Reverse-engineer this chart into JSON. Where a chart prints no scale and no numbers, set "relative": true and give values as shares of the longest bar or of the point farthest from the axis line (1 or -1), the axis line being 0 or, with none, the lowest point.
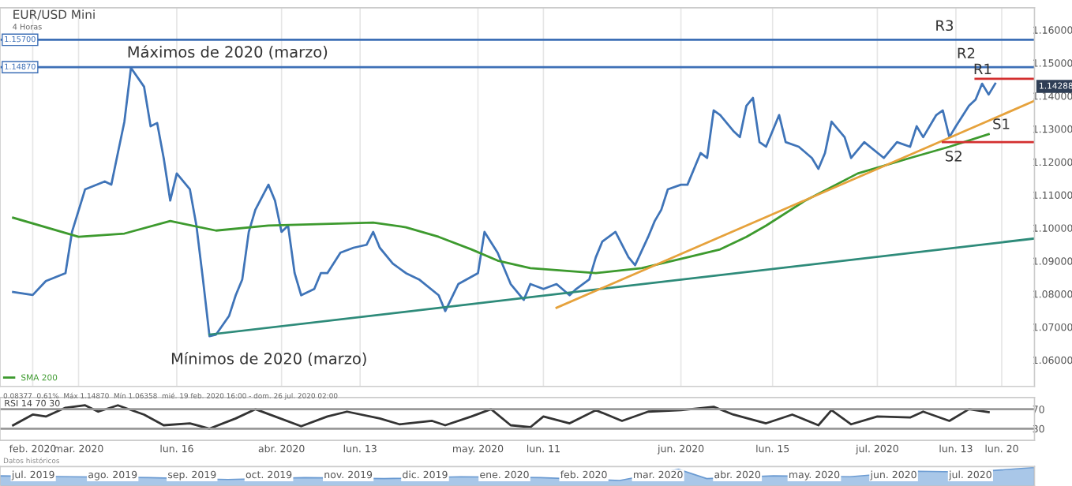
{
  "chart_data": [
    {
      "type": "line",
      "title": "EUR/USD Mini",
      "subtitle": "4 Horas",
      "xlim": [
        "2020-02-18",
        "2020-07-25"
      ],
      "xticks": [
        {
          "value": "2020-02-23",
          "label": null
        },
        {
          "value": "2020-03-01",
          "label": null
        },
        {
          "value": "2020-03-16",
          "label": null
        },
        {
          "value": "2020-04-01",
          "label": null
        },
        {
          "value": "2020-04-13",
          "label": null
        },
        {
          "value": "2020-05-01",
          "label": null
        },
        {
          "value": "2020-05-11",
          "label": null
        },
        {
          "value": "2020-06-01",
          "label": null
        },
        {
          "value": "2020-06-15",
          "label": null
        },
        {
          "value": "2020-07-01",
          "label": null
        },
        {
          "value": "2020-07-13",
          "label": null
        },
        {
          "value": "2020-07-20",
          "label": null
        }
      ],
      "ylim": [
        1.052,
        1.1667
      ],
      "yticks": [
        {
          "value": 1.06,
          "label": "1.06000"
        },
        {
          "value": 1.07,
          "label": "1.07000"
        },
        {
          "value": 1.08,
          "label": "1.08000"
        },
        {
          "value": 1.09,
          "label": "1.09000"
        },
        {
          "value": 1.1,
          "label": "1.10000"
        },
        {
          "value": 1.11,
          "label": "1.11000"
        },
        {
          "value": 1.12,
          "label": "1.12000"
        },
        {
          "value": 1.13,
          "label": "1.13000"
        },
        {
          "value": 1.14,
          "label": "1.14000"
        },
        {
          "value": 1.15,
          "label": "1.15000"
        },
        {
          "value": 1.16,
          "label": "1.16000"
        }
      ],
      "tick_labels": "y",
      "grid": "x",
      "legend": "bottom left",
      "marker": "none",
      "line_style": "solid",
      "series": [
        {
          "color": "#3f74b8",
          "x": [
            "2020-02-20",
            "2020-02-23",
            "2020-02-25",
            "2020-02-28",
            "2020-02-29",
            "2020-03-02",
            "2020-03-05",
            "2020-03-06",
            "2020-03-07",
            "2020-03-08",
            "2020-03-09",
            "2020-03-11",
            "2020-03-12",
            "2020-03-13",
            "2020-03-14",
            "2020-03-15",
            "2020-03-16",
            "2020-03-18",
            "2020-03-19",
            "2020-03-20",
            "2020-03-21",
            "2020-03-22",
            "2020-03-24",
            "2020-03-25",
            "2020-03-26",
            "2020-03-27",
            "2020-03-28",
            "2020-03-30",
            "2020-03-31",
            "2020-04-01",
            "2020-04-02",
            "2020-04-03",
            "2020-04-04",
            "2020-04-06",
            "2020-04-07",
            "2020-04-08",
            "2020-04-10",
            "2020-04-12",
            "2020-04-14",
            "2020-04-15",
            "2020-04-16",
            "2020-04-18",
            "2020-04-20",
            "2020-04-22",
            "2020-04-25",
            "2020-04-26",
            "2020-04-28",
            "2020-05-01",
            "2020-05-02",
            "2020-05-04",
            "2020-05-06",
            "2020-05-08",
            "2020-05-09",
            "2020-05-11",
            "2020-05-13",
            "2020-05-15",
            "2020-05-16",
            "2020-05-18",
            "2020-05-19",
            "2020-05-20",
            "2020-05-22",
            "2020-05-24",
            "2020-05-25",
            "2020-05-27",
            "2020-05-28",
            "2020-05-29",
            "2020-05-30",
            "2020-06-01",
            "2020-06-02",
            "2020-06-04",
            "2020-06-05",
            "2020-06-06",
            "2020-06-07",
            "2020-06-09",
            "2020-06-10",
            "2020-06-11",
            "2020-06-12",
            "2020-06-13",
            "2020-06-14",
            "2020-06-16",
            "2020-06-17",
            "2020-06-19",
            "2020-06-21",
            "2020-06-22",
            "2020-06-23",
            "2020-06-24",
            "2020-06-26",
            "2020-06-27",
            "2020-06-29",
            "2020-07-02",
            "2020-07-04",
            "2020-07-06",
            "2020-07-07",
            "2020-07-08",
            "2020-07-10",
            "2020-07-11",
            "2020-07-12",
            "2020-07-13",
            "2020-07-15",
            "2020-07-16",
            "2020-07-17",
            "2020-07-18",
            "2020-07-19"
          ],
          "values": [
            1.0806,
            1.0797,
            1.0839,
            1.0863,
            1.0988,
            1.1117,
            1.1141,
            1.1131,
            1.1227,
            1.1322,
            1.1485,
            1.1428,
            1.1308,
            1.1318,
            1.1212,
            1.1083,
            1.1165,
            1.1117,
            1.1007,
            1.0844,
            1.0672,
            1.0677,
            1.0734,
            1.0796,
            1.0844,
            1.0988,
            1.1055,
            1.1131,
            1.1083,
            1.0988,
            1.1007,
            1.0863,
            1.0796,
            1.0815,
            1.0863,
            1.0863,
            1.0925,
            1.094,
            1.0949,
            1.0988,
            1.094,
            1.0892,
            1.0863,
            1.0844,
            1.0796,
            1.0748,
            1.083,
            1.0863,
            1.0988,
            1.0925,
            1.083,
            1.0782,
            1.083,
            1.0815,
            1.083,
            1.0796,
            1.0815,
            1.0844,
            1.0911,
            1.0959,
            1.0988,
            1.0911,
            1.0887,
            1.0973,
            1.1021,
            1.1055,
            1.1117,
            1.1131,
            1.1131,
            1.1227,
            1.1212,
            1.1356,
            1.1342,
            1.1294,
            1.1275,
            1.137,
            1.1394,
            1.126,
            1.1246,
            1.1342,
            1.126,
            1.1246,
            1.1212,
            1.1179,
            1.1227,
            1.1322,
            1.1275,
            1.1212,
            1.126,
            1.1212,
            1.126,
            1.1246,
            1.1308,
            1.1275,
            1.1342,
            1.1356,
            1.1275,
            1.1308,
            1.137,
            1.1389,
            1.1437,
            1.1404,
            1.1437
          ]
        },
        {
          "name": "SMA 200",
          "color": "#3d9a2e",
          "x": [
            "2020-02-20",
            "2020-03-01",
            "2020-03-08",
            "2020-03-15",
            "2020-03-22",
            "2020-03-30",
            "2020-04-15",
            "2020-04-20",
            "2020-04-25",
            "2020-04-30",
            "2020-05-04",
            "2020-05-09",
            "2020-05-19",
            "2020-05-26",
            "2020-06-02",
            "2020-06-07",
            "2020-06-11",
            "2020-06-14",
            "2020-06-20",
            "2020-06-28",
            "2020-07-06",
            "2020-07-12",
            "2020-07-18"
          ],
          "values": [
            1.1031,
            1.0973,
            1.0983,
            1.1021,
            1.0992,
            1.1007,
            1.1016,
            1.1002,
            1.0973,
            1.0935,
            1.0901,
            1.0878,
            1.0863,
            1.0878,
            1.0911,
            1.0935,
            1.0973,
            1.1007,
            1.1083,
            1.1165,
            1.1212,
            1.1246,
            1.1284
          ]
        },
        {
          "color": "#2e8b7a",
          "x": [
            "2020-03-21",
            "2020-07-25"
          ],
          "values": [
            1.0677,
            1.0968
          ]
        },
        {
          "color": "#e6a23c",
          "x": [
            "2020-05-13",
            "2020-07-25"
          ],
          "values": [
            1.0758,
            1.1385
          ]
        },
        {
          "color": "#d32f2f",
          "x": [
            "2020-07-16",
            "2020-07-25"
          ],
          "values": [
            1.1452,
            1.1452
          ]
        },
        {
          "color": "#d32f2f",
          "x": [
            "2020-07-11",
            "2020-07-25"
          ],
          "values": [
            1.126,
            1.126
          ]
        }
      ],
      "ref_lines": [
        {
          "axis": "y",
          "value": 1.157,
          "label": "1.15700",
          "color": "#3d6fb6"
        },
        {
          "axis": "y",
          "value": 1.1487,
          "label": "1.14870",
          "color": "#3d6fb6"
        }
      ],
      "annotations": [
        "Máximos de 2020 (marzo)",
        "Mínimos de 2020 (marzo)",
        "R3",
        "R2",
        "R1",
        "S1",
        "S2",
        {
          "text": "1.14288",
          "x": "2020-07-25",
          "y": 1.14288
        },
        "0.08377  0.61%  Máx 1.14870  Mín 1.06358  mié. 19 feb. 2020 16:00 - dom. 26 jul. 2020 02:00"
      ]
    },
    {
      "type": "line",
      "title": "RSI 14 70 30",
      "xlim": [
        "2020-02-18",
        "2020-07-25"
      ],
      "xticks": [
        {
          "value": "2020-02-23",
          "label": "feb. 2020"
        },
        {
          "value": "2020-03-01",
          "label": "mar. 2020"
        },
        {
          "value": "2020-03-16",
          "label": "lun. 16"
        },
        {
          "value": "2020-04-01",
          "label": "abr. 2020"
        },
        {
          "value": "2020-04-13",
          "label": "lun. 13"
        },
        {
          "value": "2020-05-01",
          "label": "may. 2020"
        },
        {
          "value": "2020-05-11",
          "label": "lun. 11"
        },
        {
          "value": "2020-06-01",
          "label": "jun. 2020"
        },
        {
          "value": "2020-06-15",
          "label": "lun. 15"
        },
        {
          "value": "2020-07-01",
          "label": "jul. 2020"
        },
        {
          "value": "2020-07-13",
          "label": "lun. 13"
        },
        {
          "value": "2020-07-20",
          "label": "lun. 20"
        }
      ],
      "ylim": [
        6,
        94
      ],
      "yticks": [
        30,
        70
      ],
      "marker": "none",
      "line_style": "solid",
      "series": [
        {
          "color": "#333333",
          "x": [
            "2020-02-20",
            "2020-02-23",
            "2020-02-25",
            "2020-02-28",
            "2020-03-02",
            "2020-03-04",
            "2020-03-07",
            "2020-03-11",
            "2020-03-14",
            "2020-03-18",
            "2020-03-21",
            "2020-03-25",
            "2020-03-28",
            "2020-03-31",
            "2020-04-04",
            "2020-04-08",
            "2020-04-11",
            "2020-04-16",
            "2020-04-19",
            "2020-04-24",
            "2020-04-26",
            "2020-04-30",
            "2020-05-03",
            "2020-05-06",
            "2020-05-09",
            "2020-05-11",
            "2020-05-15",
            "2020-05-19",
            "2020-05-23",
            "2020-05-27",
            "2020-06-01",
            "2020-06-06",
            "2020-06-09",
            "2020-06-14",
            "2020-06-18",
            "2020-06-22",
            "2020-06-24",
            "2020-06-27",
            "2020-07-01",
            "2020-07-06",
            "2020-07-08",
            "2020-07-12",
            "2020-07-15",
            "2020-07-18"
          ],
          "values": [
            37,
            59,
            55,
            73,
            78,
            65,
            78,
            59,
            37,
            41,
            30,
            51,
            70,
            55,
            35,
            55,
            65,
            51,
            39,
            46,
            37,
            55,
            70,
            37,
            33,
            55,
            41,
            68,
            46,
            65,
            68,
            75,
            59,
            41,
            59,
            37,
            68,
            39,
            55,
            53,
            65,
            46,
            70,
            64
          ]
        }
      ],
      "ref_lines": [
        {
          "axis": "y",
          "value": 70,
          "color": "#999999"
        },
        {
          "axis": "y",
          "value": 30,
          "color": "#999999"
        }
      ],
      "annotations": [
        "Datos históricos"
      ]
    },
    {
      "type": "area",
      "relative": true,
      "tick_labels": "x",
      "color": "#a9c7e8",
      "xlim": [
        "2019-06-18",
        "2020-07-26"
      ],
      "xticks": [
        {
          "value": "2019-07-01",
          "label": "jul. 2019"
        },
        {
          "value": "2019-08-01",
          "label": "ago. 2019"
        },
        {
          "value": "2019-09-01",
          "label": "sep. 2019"
        },
        {
          "value": "2019-10-01",
          "label": "oct. 2019"
        },
        {
          "value": "2019-11-01",
          "label": "nov. 2019"
        },
        {
          "value": "2019-12-01",
          "label": "dic. 2019"
        },
        {
          "value": "2020-01-01",
          "label": "ene. 2020"
        },
        {
          "value": "2020-02-01",
          "label": "feb. 2020"
        },
        {
          "value": "2020-03-01",
          "label": "mar. 2020"
        },
        {
          "value": "2020-04-01",
          "label": "abr. 2020"
        },
        {
          "value": "2020-05-01",
          "label": "may. 2020"
        },
        {
          "value": "2020-06-01",
          "label": "jun. 2020"
        },
        {
          "value": "2020-07-01",
          "label": "jul. 2020"
        }
      ],
      "x": [
        "2019-06-18",
        "2019-07-15",
        "2019-08-15",
        "2019-09-15",
        "2019-10-15",
        "2019-11-15",
        "2019-12-15",
        "2020-01-15",
        "2020-02-15",
        "2020-03-09",
        "2020-03-20",
        "2020-04-15",
        "2020-05-15",
        "2020-06-10",
        "2020-07-01",
        "2020-07-26"
      ],
      "values": [
        0.55,
        0.5,
        0.45,
        0.35,
        0.45,
        0.4,
        0.5,
        0.45,
        0.3,
        0.9,
        0.4,
        0.55,
        0.5,
        0.8,
        0.75,
        1
      ]
    }
  ]
}
